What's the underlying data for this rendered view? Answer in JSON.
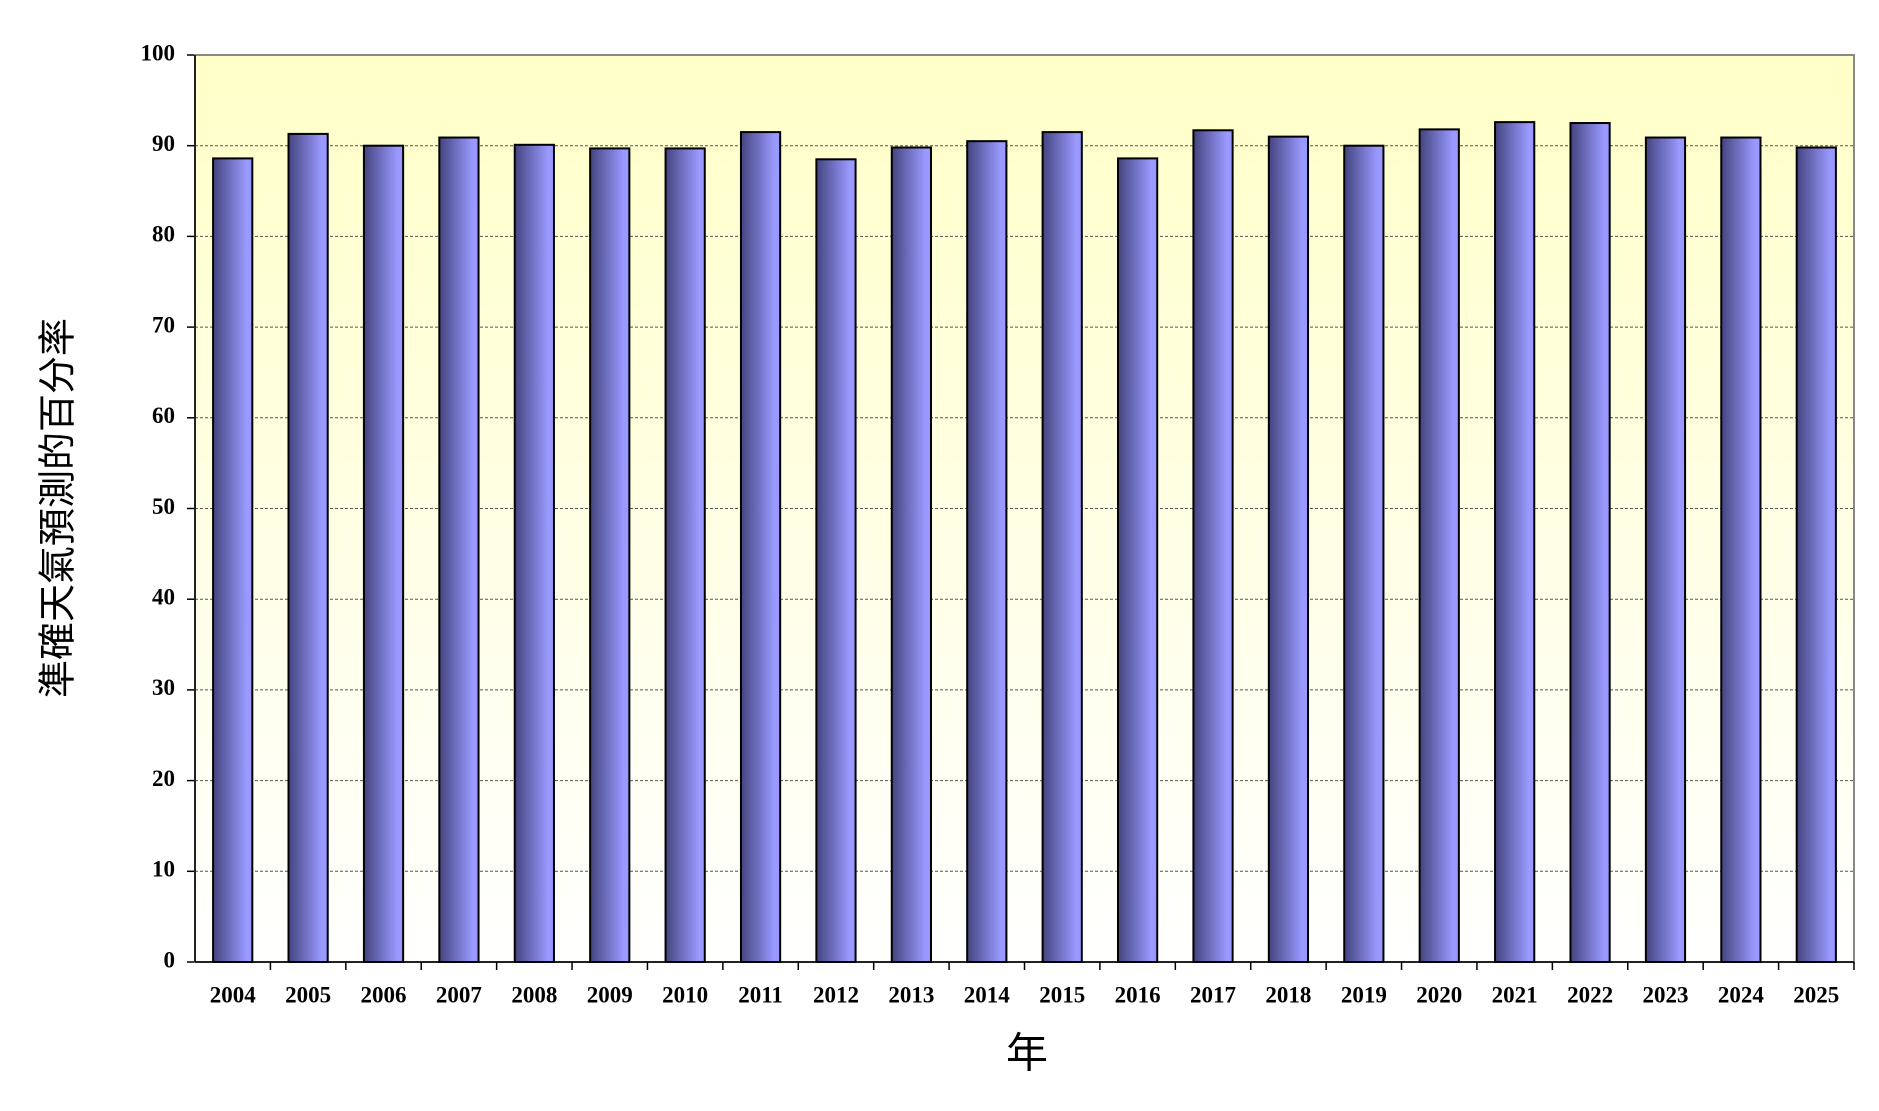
{
  "chart_data": {
    "type": "bar",
    "x_label": "年",
    "y_label": "準確天氣預測的百分率",
    "categories": [
      "2004",
      "2005",
      "2006",
      "2007",
      "2008",
      "2009",
      "2010",
      "2011",
      "2012",
      "2013",
      "2014",
      "2015",
      "2016",
      "2017",
      "2018",
      "2019",
      "2020",
      "2021",
      "2022",
      "2023",
      "2024",
      "2025"
    ],
    "values": [
      88.6,
      91.3,
      90.0,
      90.9,
      90.1,
      89.7,
      89.7,
      91.5,
      88.5,
      89.8,
      90.5,
      91.5,
      88.6,
      91.7,
      91.0,
      90.0,
      91.8,
      92.6,
      92.5,
      90.9,
      90.9,
      89.8
    ],
    "color": "#9999ff",
    "ylim": [
      0,
      100
    ],
    "yticks": [
      0,
      10,
      20,
      30,
      40,
      50,
      60,
      70,
      80,
      90,
      100
    ],
    "grid": true
  }
}
